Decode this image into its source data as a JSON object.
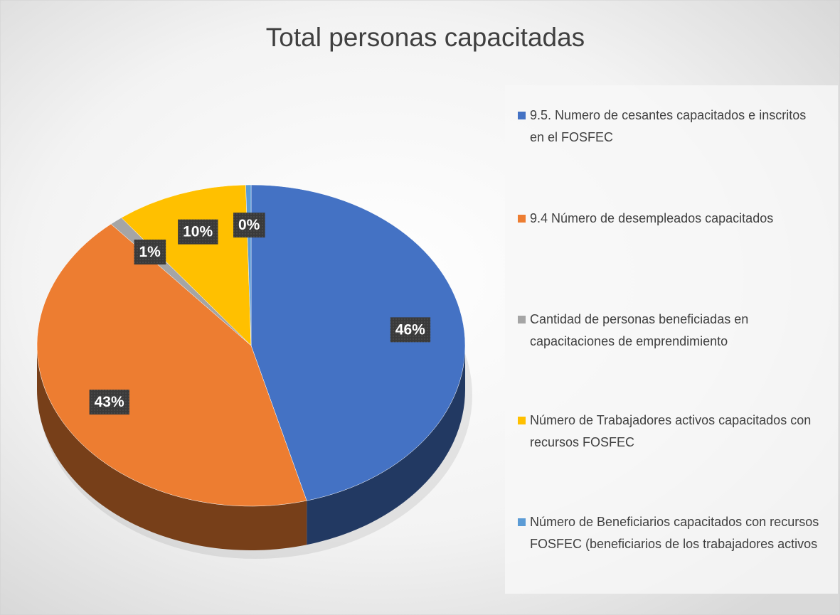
{
  "chart_data": {
    "type": "pie",
    "title": "Total personas capacitadas",
    "categories": [
      "9.5. Numero de cesantes capacitados e inscritos en el FOSFEC",
      "9.4 Número de desempleados capacitados",
      "Cantidad de personas beneficiadas en capacitaciones de emprendimiento",
      "Número de Trabajadores activos capacitados con recursos FOSFEC",
      "Número de Beneficiarios capacitados con recursos FOSFEC (beneficiarios de los trabajadores activos"
    ],
    "values": [
      46,
      43,
      1,
      10,
      0.4
    ],
    "value_labels": [
      "46%",
      "43%",
      "1%",
      "10%",
      "0%"
    ],
    "colors": [
      "#4472c4",
      "#ed7d31",
      "#a5a5a5",
      "#ffc000",
      "#5b9bd5"
    ],
    "legend": "right"
  }
}
